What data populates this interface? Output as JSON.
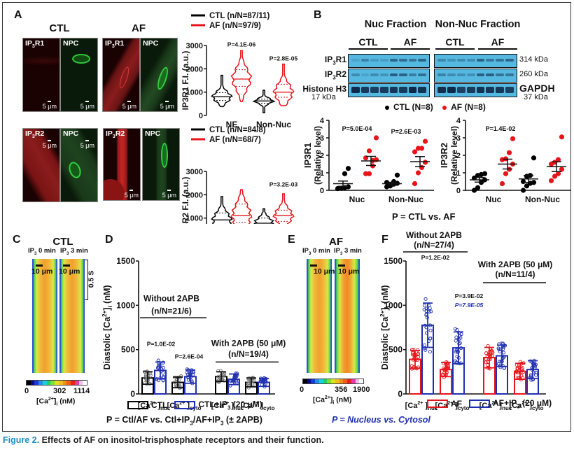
{
  "panels": {
    "A": {
      "letter": "A",
      "groups": [
        "CTL",
        "AF"
      ],
      "row1_labels": {
        "receptor": "IP",
        "receptor_sub": "3",
        "receptor_suffix": "R1",
        "npc": "NPC"
      },
      "row2_labels": {
        "receptor": "IP",
        "receptor_sub": "3",
        "receptor_suffix": "R2",
        "npc": "NPC"
      },
      "scale_bar": "5 μm",
      "violin1": {
        "legend": [
          "CTL (n/N=87/11)",
          "AF (n/N=97/9)"
        ],
        "ylabel": "IP3R1 F.I. (a.u.)",
        "pvals": [
          "P=4.1E-06",
          "P=2.8E-05"
        ]
      },
      "violin2": {
        "legend": [
          "CTL (n/N=84/8)",
          "AF (n/N=68/7)"
        ],
        "ylabel": "IP3R2 F.I. (a.u.)",
        "pvals": [
          "P=3.2E-03"
        ]
      }
    },
    "B": {
      "letter": "B",
      "fraction_headers": [
        "Nuc Fraction",
        "Non-Nuc Fraction"
      ],
      "group_headers": [
        "CTL",
        "AF",
        "CTL",
        "AF"
      ],
      "blot_rows": [
        {
          "label": "IP3R1",
          "kda": "314 kDa"
        },
        {
          "label": "IP3R2",
          "kda": "260 kDa"
        },
        {
          "label": "Histone H3",
          "kda_left": "17 kDa",
          "right_label": "GAPDH",
          "kda_right": "37 kDa"
        }
      ],
      "legend": [
        "CTL (N=8)",
        "AF (N=8)"
      ],
      "footnote": "P = CTL vs. AF"
    },
    "C": {
      "letter": "C",
      "title": "CTL",
      "col_labels": [
        "IP3 0 min",
        "IP3 3 min"
      ],
      "scale": "10 μm",
      "time_scale": "0.5 S",
      "colorbar": {
        "min": "0",
        "mid": "302",
        "max": "1114",
        "label": "[Ca2+]i (nM)"
      }
    },
    "D": {
      "letter": "D",
      "group1": {
        "title": "Without 2APB",
        "n": "(n/N=21/6)"
      },
      "group2": {
        "title": "With 2APB (50 μM)",
        "n": "(n/N=19/4)"
      },
      "pvals": [
        "P=1.0E-02",
        "P=2.6E-04"
      ],
      "legend": [
        "CTL",
        "CTL+IP3 (20 μM)"
      ],
      "footnote": "P = Ctl/AF vs. Ctl+IP3/AF+IP3 (± 2APB)"
    },
    "E": {
      "letter": "E",
      "title": "AF",
      "col_labels": [
        "IP3 0 min",
        "IP3 3 min"
      ],
      "scale": "10 μm",
      "colorbar": {
        "min": "0",
        "mid": "356",
        "max": "1900",
        "label": "[Ca2+]i (nM)"
      }
    },
    "F": {
      "letter": "F",
      "group1": {
        "title": "Without 2APB",
        "n": "(n/N=27/4)"
      },
      "group2": {
        "title": "With 2APB (50 μM)",
        "n": "(n/N=11/4)"
      },
      "pvals_black": [
        "P=1.2E-02",
        "P=3.9E-02"
      ],
      "pval_blue": "P=7.9E-05",
      "legend": [
        "AF",
        "AF+IP3 (20 μM)"
      ],
      "footnote": "P = Nucleus vs. Cytosol"
    }
  },
  "caption": {
    "fig": "Figure 2.",
    "text": " Effects of AF on inositol-trisphosphate receptors and their function."
  },
  "colors": {
    "ctl": "#000000",
    "af": "#e8141a",
    "ip3": "#1f2fb0",
    "blot": "#55b8e0",
    "caption_accent": "#1a8ec4"
  },
  "chart_data": [
    {
      "id": "A-top",
      "type": "violin",
      "ylabel": "IP3R1 F.I. (a.u.)",
      "categories": [
        "NE",
        "Non-Nuc"
      ],
      "ylim": [
        0,
        3000
      ],
      "yticks": [
        0,
        1000,
        2000,
        3000
      ],
      "series": [
        {
          "name": "CTL (n/N=87/11)",
          "color": "#000000",
          "violins": [
            {
              "min": 380,
              "q1": 640,
              "median": 800,
              "q3": 980,
              "max": 1720
            },
            {
              "min": 120,
              "q1": 520,
              "median": 620,
              "q3": 700,
              "max": 1080
            }
          ]
        },
        {
          "name": "AF (n/N=97/9)",
          "color": "#e8141a",
          "violins": [
            {
              "min": 600,
              "q1": 1250,
              "median": 1560,
              "q3": 1960,
              "max": 2780
            },
            {
              "min": 420,
              "q1": 780,
              "median": 1000,
              "q3": 1340,
              "max": 2200
            }
          ]
        }
      ],
      "annotations": [
        "P=4.1E-06",
        "P=2.8E-05"
      ]
    },
    {
      "id": "A-bottom",
      "type": "violin",
      "ylabel": "IP3R2 F.I. (a.u.)",
      "categories": [
        "NE",
        "Non-Nuc"
      ],
      "ylim": [
        0,
        3000
      ],
      "yticks": [
        0,
        1000,
        2000,
        3000
      ],
      "series": [
        {
          "name": "CTL (n/N=84/8)",
          "color": "#000000",
          "violins": [
            {
              "min": 480,
              "q1": 720,
              "median": 920,
              "q3": 1220,
              "max": 1920
            },
            {
              "min": 380,
              "q1": 640,
              "median": 780,
              "q3": 1000,
              "max": 1400
            }
          ]
        },
        {
          "name": "AF (n/N=68/7)",
          "color": "#e8141a",
          "violins": [
            {
              "min": 460,
              "q1": 820,
              "median": 1100,
              "q3": 1600,
              "max": 2220
            },
            {
              "min": 580,
              "q1": 860,
              "median": 1100,
              "q3": 1340,
              "max": 2040
            }
          ]
        }
      ],
      "annotations": [
        "P=3.2E-03"
      ]
    },
    {
      "id": "B-left",
      "type": "scatter",
      "ylabel": "IP3R1 (Relative level)",
      "categories": [
        "Nuc",
        "Non-Nuc"
      ],
      "ylim": [
        0,
        4
      ],
      "yticks": [
        0,
        1,
        2,
        3,
        4
      ],
      "series": [
        {
          "name": "CTL (N=8)",
          "color": "#000000",
          "points": [
            [
              0.1,
              0.12,
              0.15,
              0.2,
              0.1,
              0.12,
              0.95,
              1.25
            ],
            [
              0.2,
              0.3,
              0.35,
              0.4,
              0.45,
              0.25,
              0.5,
              0.87
            ]
          ],
          "mean": [
            0.38,
            0.38
          ],
          "sem": [
            0.15,
            0.08
          ]
        },
        {
          "name": "AF (N=8)",
          "color": "#e8141a",
          "points": [
            [
              0.95,
              0.95,
              1.4,
              1.75,
              1.85,
              2.25,
              1.7,
              3.0
            ],
            [
              0.38,
              1.0,
              1.3,
              1.6,
              2.2,
              2.4,
              2.4,
              2.8
            ]
          ],
          "mean": [
            1.68,
            1.64
          ],
          "sem": [
            0.26,
            0.29
          ]
        }
      ],
      "annotations": [
        "P=5.0E-04",
        "P=2.6E-03"
      ]
    },
    {
      "id": "B-right",
      "type": "scatter",
      "ylabel": "IP3R2 (Relative level)",
      "categories": [
        "Nuc",
        "Non-Nuc"
      ],
      "ylim": [
        0,
        4
      ],
      "yticks": [
        0,
        1,
        2,
        3,
        4
      ],
      "series": [
        {
          "name": "CTL (N=8)",
          "color": "#000000",
          "points": [
            [
              0.0,
              0.15,
              0.45,
              0.6,
              0.7,
              0.85,
              0.9,
              0.95
            ],
            [
              0.0,
              0.25,
              0.4,
              0.45,
              0.5,
              0.8,
              0.85,
              1.85
            ]
          ],
          "mean": [
            0.6,
            0.65
          ],
          "sem": [
            0.13,
            0.2
          ]
        },
        {
          "name": "AF (N=8)",
          "color": "#e8141a",
          "points": [
            [
              0.38,
              0.95,
              1.2,
              1.5,
              1.75,
              1.8,
              2.15,
              2.95
            ],
            [
              0.55,
              0.8,
              0.95,
              1.2,
              1.5,
              1.6,
              1.75,
              3.05
            ]
          ],
          "mean": [
            1.5,
            1.35
          ],
          "sem": [
            0.28,
            0.28
          ]
        }
      ],
      "annotations": [
        "P=1.4E-02"
      ]
    },
    {
      "id": "D",
      "type": "bar",
      "ylabel": "Diastolic [Ca2+]i (nM)",
      "categories": [
        "[Ca2+]nuc",
        "[Ca2+]cyto",
        "[Ca2+]nuc",
        "[Ca2+]cyto"
      ],
      "ylim": [
        0,
        1500
      ],
      "yticks": [
        0,
        500,
        1000,
        1500
      ],
      "series": [
        {
          "name": "CTL",
          "color": "#000000",
          "values": [
            180,
            130,
            195,
            130
          ],
          "sd": [
            70,
            60,
            55,
            50
          ]
        },
        {
          "name": "CTL+IP3 (20 μM)",
          "color": "#1f2fb0",
          "values": [
            265,
            195,
            165,
            130
          ],
          "sd": [
            95,
            75,
            60,
            45
          ]
        }
      ],
      "annotations": [
        "P=1.0E-02",
        "P=2.6E-04"
      ]
    },
    {
      "id": "F",
      "type": "bar",
      "ylabel": "Diastolic [Ca2+]i (nM)",
      "categories": [
        "[Ca2+]nuc",
        "[Ca2+]cyto",
        "[Ca2+]nuc",
        "[Ca2+]cyto"
      ],
      "ylim": [
        0,
        1500
      ],
      "yticks": [
        0,
        500,
        1000,
        1500
      ],
      "series": [
        {
          "name": "AF",
          "color": "#e8141a",
          "values": [
            390,
            275,
            410,
            255
          ],
          "sd": [
            100,
            80,
            115,
            90
          ]
        },
        {
          "name": "AF+IP3 (20 μM)",
          "color": "#1f2fb0",
          "values": [
            775,
            520,
            430,
            275
          ],
          "sd": [
            250,
            180,
            120,
            100
          ]
        }
      ],
      "annotations": [
        "P=1.2E-02",
        "P=3.9E-02",
        "P=7.9E-05"
      ]
    }
  ]
}
